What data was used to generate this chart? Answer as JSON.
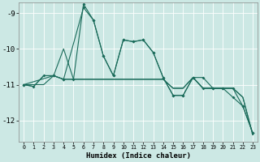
{
  "xlabel": "Humidex (Indice chaleur)",
  "background_color": "#cce8e4",
  "grid_color": "#ffffff",
  "line_color": "#1a6b5a",
  "xlim": [
    -0.5,
    23.5
  ],
  "ylim": [
    -12.6,
    -8.7
  ],
  "yticks": [
    -12,
    -11,
    -10,
    -9
  ],
  "xticks": [
    0,
    1,
    2,
    3,
    4,
    5,
    6,
    7,
    8,
    9,
    10,
    11,
    12,
    13,
    14,
    15,
    16,
    17,
    18,
    19,
    20,
    21,
    22,
    23
  ],
  "line1_x": [
    0,
    1,
    2,
    3,
    4,
    5,
    6,
    7,
    8,
    9,
    10,
    11,
    12,
    13,
    14,
    15,
    16,
    17,
    18,
    19,
    20,
    21,
    22,
    23
  ],
  "line1_y": [
    -11.0,
    -11.05,
    -10.75,
    -10.75,
    -10.85,
    -10.85,
    -8.75,
    -9.2,
    -10.2,
    -10.75,
    -9.75,
    -9.8,
    -9.75,
    -10.1,
    -10.8,
    -11.3,
    -11.3,
    -10.8,
    -11.1,
    -11.1,
    -11.1,
    -11.35,
    -11.6,
    -12.35
  ],
  "line2_x": [
    0,
    1,
    2,
    3,
    4,
    5,
    6,
    7,
    8,
    9,
    10,
    11,
    12,
    13,
    14,
    15,
    16,
    17,
    18,
    19,
    20,
    21,
    22,
    23
  ],
  "line2_y": [
    -11.0,
    -11.05,
    -10.75,
    -10.75,
    -10.0,
    -10.85,
    -10.85,
    -10.85,
    -10.85,
    -10.85,
    -10.85,
    -10.85,
    -10.85,
    -10.85,
    -10.85,
    -11.1,
    -11.1,
    -10.8,
    -11.1,
    -11.1,
    -11.1,
    -11.1,
    -11.35,
    -12.4
  ],
  "line3_x": [
    0,
    1,
    2,
    3,
    4,
    5,
    6,
    7,
    8,
    9,
    10,
    11,
    12,
    13,
    14,
    15,
    16,
    17,
    18,
    19,
    20,
    21,
    22,
    23
  ],
  "line3_y": [
    -11.0,
    -11.0,
    -11.0,
    -10.75,
    -10.85,
    -10.85,
    -10.85,
    -10.85,
    -10.85,
    -10.85,
    -10.85,
    -10.85,
    -10.85,
    -10.85,
    -10.85,
    -11.1,
    -11.1,
    -10.8,
    -11.1,
    -11.1,
    -11.1,
    -11.1,
    -11.35,
    -12.4
  ],
  "line4_x": [
    0,
    3,
    4,
    6,
    7,
    8,
    9,
    10,
    11,
    12,
    13,
    14,
    15,
    16,
    17,
    18,
    19,
    20,
    21,
    22,
    23
  ],
  "line4_y": [
    -11.0,
    -10.75,
    -10.85,
    -8.85,
    -9.2,
    -10.2,
    -10.75,
    -9.75,
    -9.8,
    -9.75,
    -10.1,
    -10.8,
    -11.3,
    -11.3,
    -10.8,
    -10.8,
    -11.1,
    -11.1,
    -11.1,
    -11.6,
    -12.35
  ]
}
